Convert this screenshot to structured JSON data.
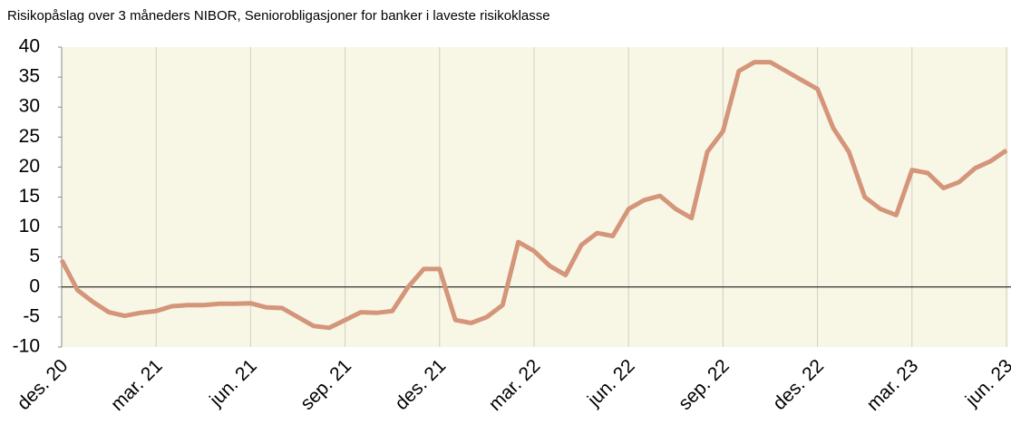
{
  "chart_data": {
    "type": "line",
    "title": "Risikopåslag over 3 måneders NIBOR, Seniorobligasjoner for banker i laveste risikoklasse",
    "categories": [
      "des. 20",
      null,
      null,
      null,
      null,
      null,
      "mar. 21",
      null,
      null,
      null,
      null,
      null,
      "jun. 21",
      null,
      null,
      null,
      null,
      null,
      "sep. 21",
      null,
      null,
      null,
      null,
      null,
      "des. 21",
      null,
      null,
      null,
      null,
      null,
      "mar. 22",
      null,
      null,
      null,
      null,
      null,
      "jun. 22",
      null,
      null,
      null,
      null,
      null,
      "sep. 22",
      null,
      null,
      null,
      null,
      null,
      "des. 22",
      null,
      null,
      null,
      null,
      null,
      "mar. 23",
      null,
      null,
      null,
      null,
      null,
      "jun. 23"
    ],
    "series": [
      {
        "name": "Risikopåslag",
        "color": "#d4957a",
        "values": [
          4.5,
          -0.5,
          -2.5,
          -4.2,
          -4.8,
          -4.3,
          -4.0,
          -3.2,
          -3.0,
          -3.0,
          -2.8,
          -2.8,
          -2.7,
          -3.4,
          -3.5,
          -5.0,
          -6.5,
          -6.8,
          -5.5,
          -4.2,
          -4.3,
          -4.0,
          0,
          3.0,
          3.0,
          -5.5,
          -6.0,
          -5.0,
          -3.0,
          7.5,
          6.0,
          3.5,
          2.0,
          7.0,
          9.0,
          8.5,
          13.0,
          14.5,
          15.2,
          13.0,
          11.5,
          22.5,
          26.0,
          36.0,
          37.5,
          37.5,
          36.0,
          34.5,
          33.0,
          26.5,
          22.5,
          15.0,
          13.0,
          12.0,
          19.5,
          19.0,
          16.5,
          17.5,
          19.8,
          21.0,
          22.8
        ]
      }
    ],
    "ylim": [
      -10,
      40
    ],
    "yticks": [
      -10,
      -5,
      0,
      5,
      10,
      15,
      20,
      25,
      30,
      35,
      40
    ],
    "grid": true
  }
}
